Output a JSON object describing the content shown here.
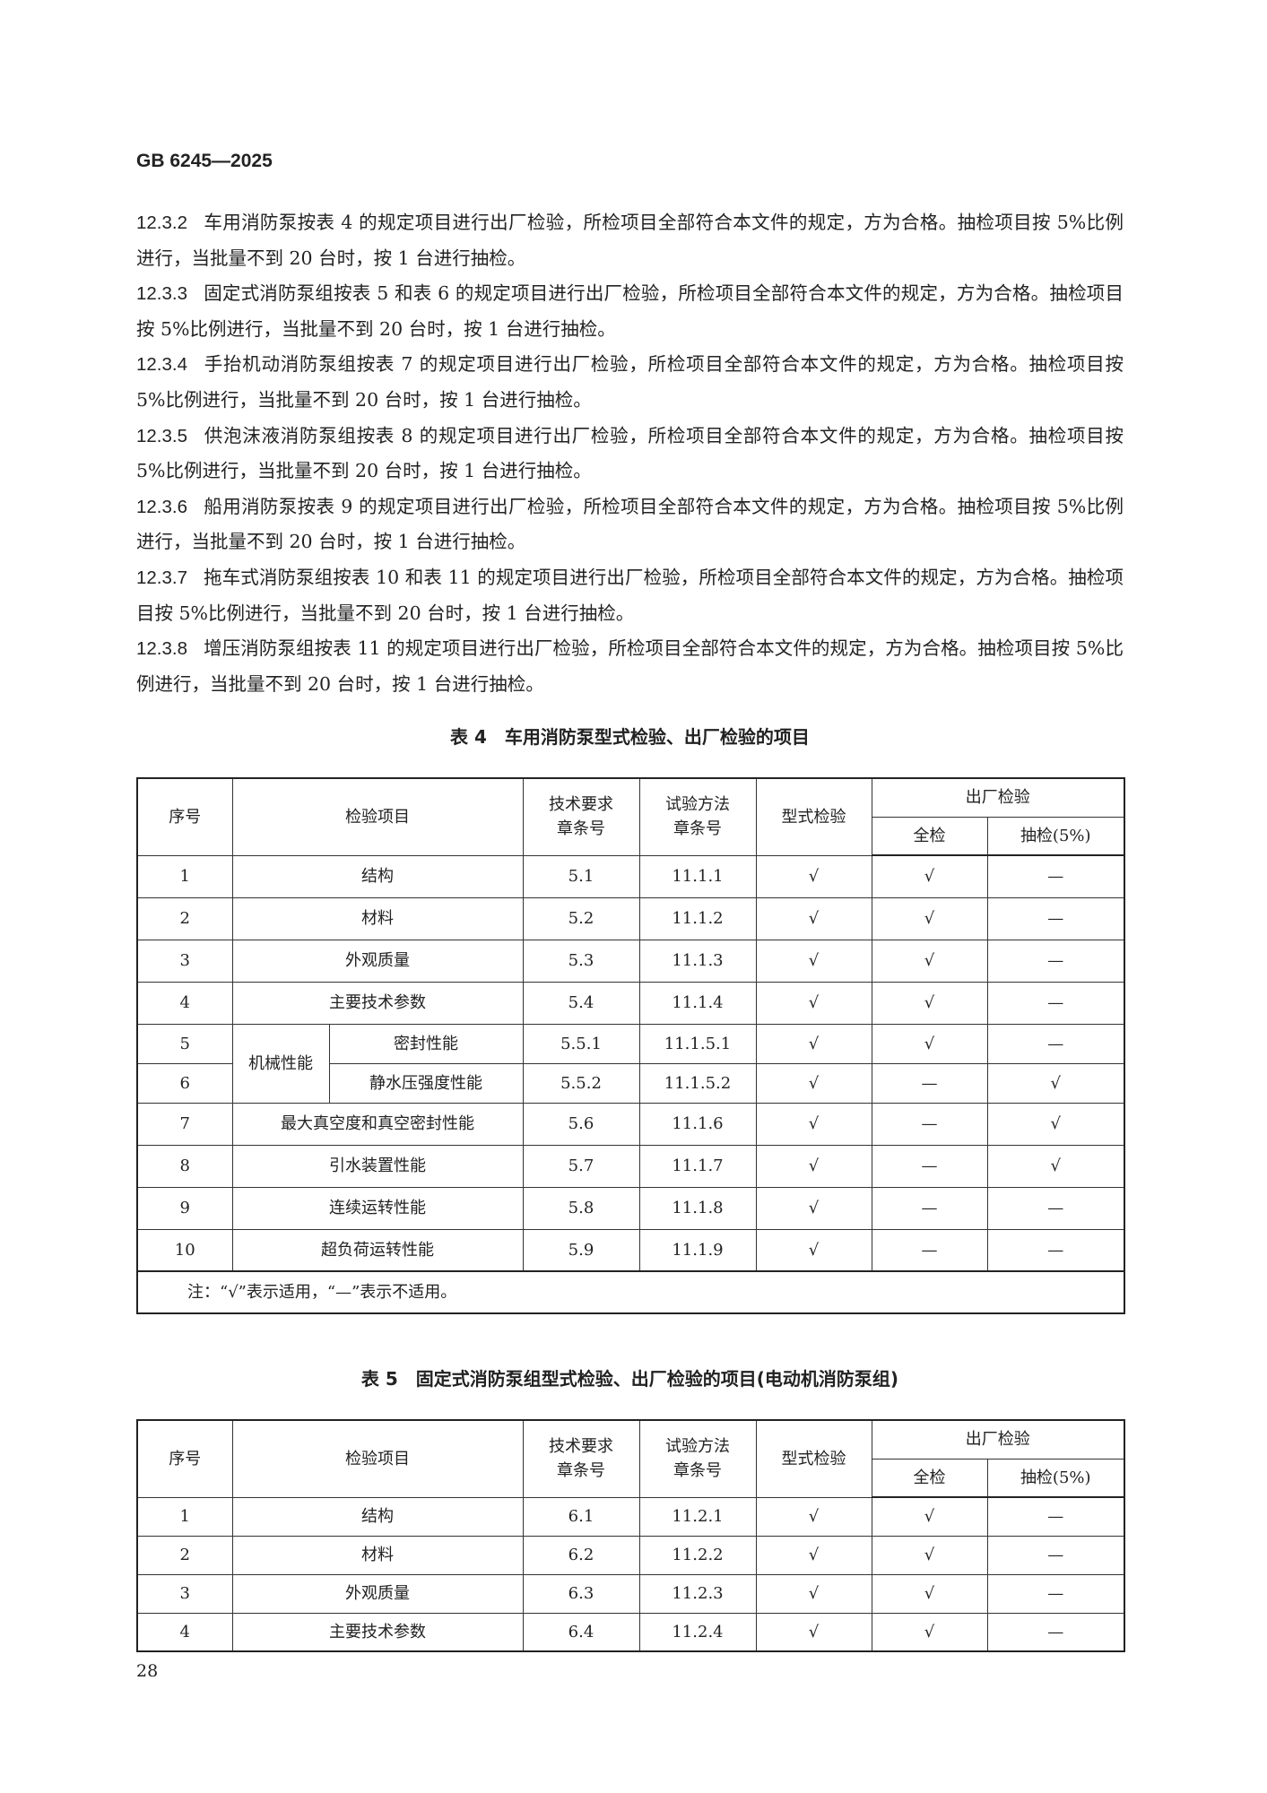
{
  "header": {
    "doc_id": "GB 6245—2025"
  },
  "paragraphs": [
    {
      "num": "12.3.2",
      "text": "车用消防泵按表 4 的规定项目进行出厂检验，所检项目全部符合本文件的规定，方为合格。抽检项目按 5%比例进行，当批量不到 20 台时，按 1 台进行抽检。"
    },
    {
      "num": "12.3.3",
      "text": "固定式消防泵组按表 5 和表 6 的规定项目进行出厂检验，所检项目全部符合本文件的规定，方为合格。抽检项目按 5%比例进行，当批量不到 20 台时，按 1 台进行抽检。"
    },
    {
      "num": "12.3.4",
      "text": "手抬机动消防泵组按表 7 的规定项目进行出厂检验，所检项目全部符合本文件的规定，方为合格。抽检项目按 5%比例进行，当批量不到 20 台时，按 1 台进行抽检。"
    },
    {
      "num": "12.3.5",
      "text": "供泡沫液消防泵组按表 8 的规定项目进行出厂检验，所检项目全部符合本文件的规定，方为合格。抽检项目按 5%比例进行，当批量不到 20 台时，按 1 台进行抽检。"
    },
    {
      "num": "12.3.6",
      "text": "船用消防泵按表 9 的规定项目进行出厂检验，所检项目全部符合本文件的规定，方为合格。抽检项目按 5%比例进行，当批量不到 20 台时，按 1 台进行抽检。"
    },
    {
      "num": "12.3.7",
      "text": "拖车式消防泵组按表 10 和表 11 的规定项目进行出厂检验，所检项目全部符合本文件的规定，方为合格。抽检项目按 5%比例进行，当批量不到 20 台时，按 1 台进行抽检。"
    },
    {
      "num": "12.3.8",
      "text": "增压消防泵组按表 11 的规定项目进行出厂检验，所检项目全部符合本文件的规定，方为合格。抽检项目按 5%比例进行，当批量不到 20 台时，按 1 台进行抽检。"
    }
  ],
  "columns": {
    "no": "序号",
    "item": "检验项目",
    "req": "技术要求\n章条号",
    "method": "试验方法\n章条号",
    "type": "型式检验",
    "factory": "出厂检验",
    "full": "全检",
    "sample": "抽检(5%)"
  },
  "table4": {
    "title": "表 4　车用消防泵型式检验、出厂检验的项目",
    "rows": [
      {
        "no": "1",
        "group": "",
        "item": "结构",
        "req": "5.1",
        "method": "11.1.1",
        "type": "√",
        "full": "√",
        "sample": "—"
      },
      {
        "no": "2",
        "group": "",
        "item": "材料",
        "req": "5.2",
        "method": "11.1.2",
        "type": "√",
        "full": "√",
        "sample": "—"
      },
      {
        "no": "3",
        "group": "",
        "item": "外观质量",
        "req": "5.3",
        "method": "11.1.3",
        "type": "√",
        "full": "√",
        "sample": "—"
      },
      {
        "no": "4",
        "group": "",
        "item": "主要技术参数",
        "req": "5.4",
        "method": "11.1.4",
        "type": "√",
        "full": "√",
        "sample": "—"
      },
      {
        "no": "5",
        "group": "机械性能",
        "item": "密封性能",
        "req": "5.5.1",
        "method": "11.1.5.1",
        "type": "√",
        "full": "√",
        "sample": "—"
      },
      {
        "no": "6",
        "group": "机械性能",
        "item": "静水压强度性能",
        "req": "5.5.2",
        "method": "11.1.5.2",
        "type": "√",
        "full": "—",
        "sample": "√"
      },
      {
        "no": "7",
        "group": "",
        "item": "最大真空度和真空密封性能",
        "req": "5.6",
        "method": "11.1.6",
        "type": "√",
        "full": "—",
        "sample": "√"
      },
      {
        "no": "8",
        "group": "",
        "item": "引水装置性能",
        "req": "5.7",
        "method": "11.1.7",
        "type": "√",
        "full": "—",
        "sample": "√"
      },
      {
        "no": "9",
        "group": "",
        "item": "连续运转性能",
        "req": "5.8",
        "method": "11.1.8",
        "type": "√",
        "full": "—",
        "sample": "—"
      },
      {
        "no": "10",
        "group": "",
        "item": "超负荷运转性能",
        "req": "5.9",
        "method": "11.1.9",
        "type": "√",
        "full": "—",
        "sample": "—"
      }
    ],
    "note": "注：“√”表示适用，“—”表示不适用。"
  },
  "table5": {
    "title": "表 5　固定式消防泵组型式检验、出厂检验的项目(电动机消防泵组)",
    "rows": [
      {
        "no": "1",
        "group": "",
        "item": "结构",
        "req": "6.1",
        "method": "11.2.1",
        "type": "√",
        "full": "√",
        "sample": "—"
      },
      {
        "no": "2",
        "group": "",
        "item": "材料",
        "req": "6.2",
        "method": "11.2.2",
        "type": "√",
        "full": "√",
        "sample": "—"
      },
      {
        "no": "3",
        "group": "",
        "item": "外观质量",
        "req": "6.3",
        "method": "11.2.3",
        "type": "√",
        "full": "√",
        "sample": "—"
      },
      {
        "no": "4",
        "group": "",
        "item": "主要技术参数",
        "req": "6.4",
        "method": "11.2.4",
        "type": "√",
        "full": "√",
        "sample": "—"
      }
    ]
  },
  "footer": {
    "page_number": "28"
  }
}
